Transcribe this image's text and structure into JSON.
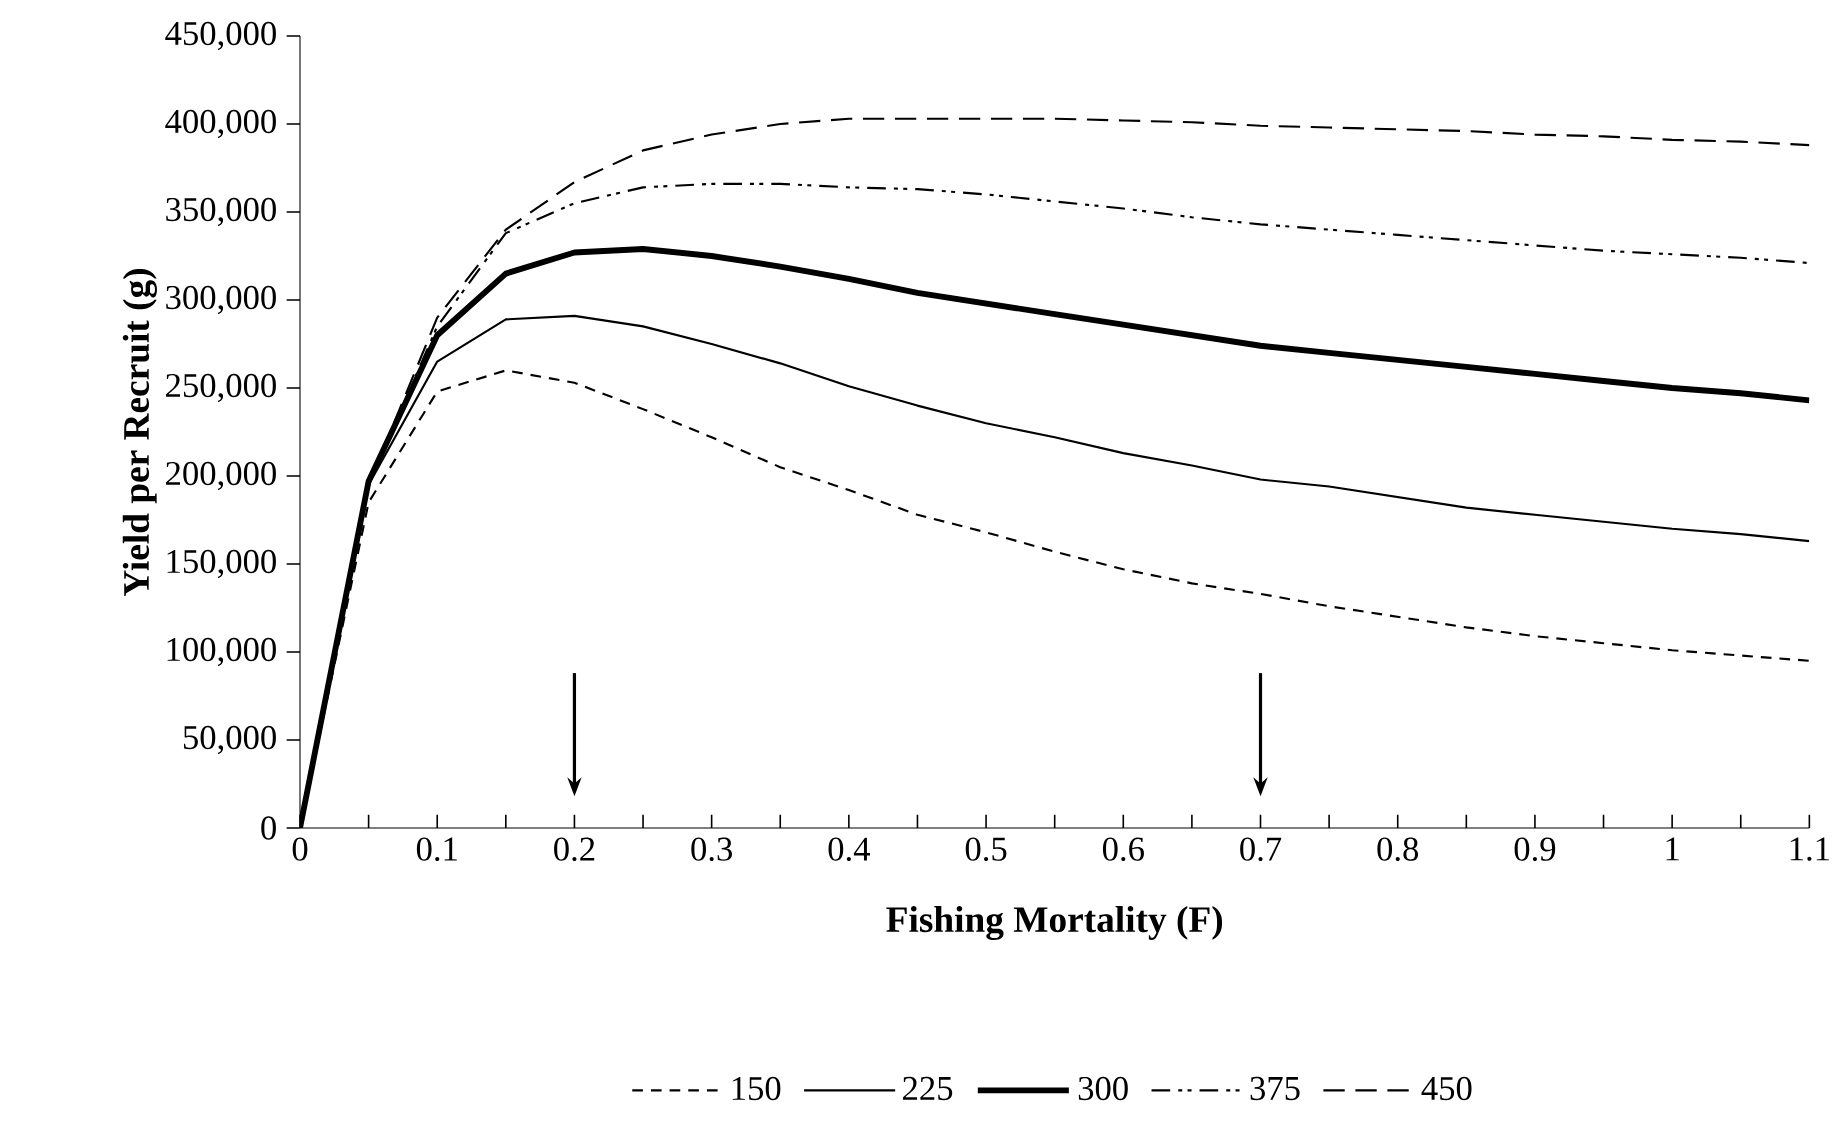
{
  "chart_data": {
    "type": "line",
    "xlabel": "Fishing Mortality (F)",
    "ylabel": "Yield per Recruit (g)",
    "x": [
      0,
      0.05,
      0.1,
      0.15,
      0.2,
      0.25,
      0.3,
      0.35,
      0.4,
      0.45,
      0.5,
      0.55,
      0.6,
      0.65,
      0.7,
      0.75,
      0.8,
      0.85,
      0.9,
      0.95,
      1,
      1.05,
      1.1
    ],
    "xlim": [
      0,
      1.1
    ],
    "ylim": [
      0,
      450000
    ],
    "xticks": [
      0,
      {
        "value": 0.05,
        "label": null
      },
      0.1,
      {
        "value": 0.15,
        "label": null
      },
      0.2,
      {
        "value": 0.25,
        "label": null
      },
      0.3,
      {
        "value": 0.35,
        "label": null
      },
      0.4,
      {
        "value": 0.45,
        "label": null
      },
      0.5,
      {
        "value": 0.55,
        "label": null
      },
      0.6,
      {
        "value": 0.65,
        "label": null
      },
      0.7,
      {
        "value": 0.75,
        "label": null
      },
      0.8,
      {
        "value": 0.85,
        "label": null
      },
      0.9,
      {
        "value": 0.95,
        "label": null
      },
      1,
      {
        "value": 1.05,
        "label": null
      },
      1.1
    ],
    "yticks": [
      {
        "value": 0,
        "label": "0"
      },
      {
        "value": 50000,
        "label": "50,000"
      },
      {
        "value": 100000,
        "label": "100,000"
      },
      {
        "value": 150000,
        "label": "150,000"
      },
      {
        "value": 200000,
        "label": "200,000"
      },
      {
        "value": 250000,
        "label": "250,000"
      },
      {
        "value": 300000,
        "label": "300,000"
      },
      {
        "value": 350000,
        "label": "350,000"
      },
      {
        "value": 400000,
        "label": "400,000"
      },
      {
        "value": 450000,
        "label": "450,000"
      }
    ],
    "grid": false,
    "legend": "bottom",
    "marker": "none",
    "series": [
      {
        "name": "150",
        "color": "#000000",
        "line_style": "dashed",
        "values": [
          0,
          185000,
          248000,
          260000,
          253000,
          238000,
          222000,
          205000,
          192000,
          178000,
          168000,
          157000,
          147000,
          139000,
          133000,
          126000,
          120000,
          114000,
          109000,
          105000,
          101000,
          98000,
          95000
        ]
      },
      {
        "name": "225",
        "color": "#000000",
        "line_style": "solid",
        "values": [
          0,
          195000,
          265000,
          289000,
          291000,
          285000,
          275000,
          264000,
          251000,
          240000,
          230000,
          222000,
          213000,
          206000,
          198000,
          194000,
          188000,
          182000,
          178000,
          174000,
          170000,
          167000,
          163000
        ]
      },
      {
        "name": "300",
        "color": "#000000",
        "line_style": "solid",
        "values": [
          0,
          197000,
          280000,
          315000,
          327000,
          329000,
          325000,
          319000,
          312000,
          304000,
          298000,
          292000,
          286000,
          280000,
          274000,
          270000,
          266000,
          262000,
          258000,
          254000,
          250000,
          247000,
          243000
        ]
      },
      {
        "name": "375",
        "color": "#000000",
        "line_style": "dashdotdotted",
        "values": [
          0,
          195000,
          285000,
          338000,
          355000,
          364000,
          366000,
          366000,
          364000,
          363000,
          360000,
          356000,
          352000,
          347000,
          343000,
          340000,
          337000,
          334000,
          331000,
          328000,
          326000,
          324000,
          321000
        ]
      },
      {
        "name": "450",
        "color": "#000000",
        "line_style": "longdashed",
        "values": [
          0,
          195000,
          290000,
          340000,
          367000,
          385000,
          394000,
          400000,
          403000,
          403000,
          403000,
          403000,
          402000,
          401000,
          399000,
          398000,
          397000,
          396000,
          394000,
          393000,
          391000,
          390000,
          388000
        ]
      }
    ]
  }
}
